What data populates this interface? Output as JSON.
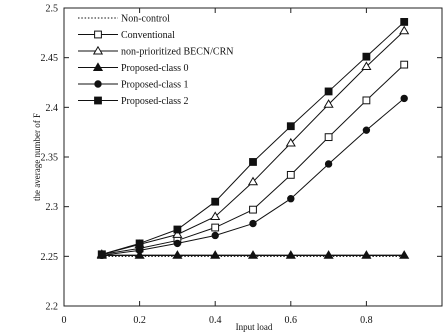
{
  "chart_data": {
    "type": "line",
    "xlabel": "Input load",
    "ylabel": "the average number of F",
    "xlim": [
      0,
      1
    ],
    "ylim": [
      2.2,
      2.5
    ],
    "xticks": [
      0,
      0.2,
      0.4,
      0.6,
      0.8
    ],
    "yticks": [
      2.2,
      2.25,
      2.3,
      2.35,
      2.4,
      2.45,
      2.5
    ],
    "xtick_labels": [
      "0",
      "0.2",
      "0.4",
      "0.6",
      "0.8"
    ],
    "ytick_labels": [
      "2.2",
      "2.25",
      "2.3",
      "2.35",
      "2.4",
      "2.45",
      "2.5"
    ],
    "grid": false,
    "legend_position": "top-left",
    "x": [
      0.1,
      0.2,
      0.3,
      0.4,
      0.5,
      0.6,
      0.7,
      0.8,
      0.9
    ],
    "series": [
      {
        "name": "Non-control",
        "marker": "none",
        "dash": "dotted",
        "values": [
          2.25,
          2.25,
          2.25,
          2.25,
          2.25,
          2.25,
          2.25,
          2.25,
          2.25
        ]
      },
      {
        "name": "Conventional",
        "marker": "square-open",
        "dash": "solid",
        "values": [
          2.252,
          2.258,
          2.266,
          2.279,
          2.297,
          2.332,
          2.37,
          2.407,
          2.443
        ]
      },
      {
        "name": "non-prioritized BECN/CRN",
        "marker": "triangle-open",
        "dash": "solid",
        "values": [
          2.252,
          2.262,
          2.272,
          2.29,
          2.325,
          2.364,
          2.403,
          2.441,
          2.477
        ]
      },
      {
        "name": "Proposed-class 0",
        "marker": "triangle-filled",
        "dash": "solid",
        "values": [
          2.251,
          2.251,
          2.251,
          2.251,
          2.251,
          2.251,
          2.251,
          2.251,
          2.251
        ]
      },
      {
        "name": "Proposed-class 1",
        "marker": "circle-filled",
        "dash": "solid",
        "values": [
          2.251,
          2.256,
          2.263,
          2.271,
          2.283,
          2.308,
          2.343,
          2.377,
          2.409
        ]
      },
      {
        "name": "Proposed-class 2",
        "marker": "square-filled",
        "dash": "solid",
        "values": [
          2.252,
          2.263,
          2.277,
          2.305,
          2.345,
          2.381,
          2.416,
          2.451,
          2.486
        ]
      }
    ]
  }
}
